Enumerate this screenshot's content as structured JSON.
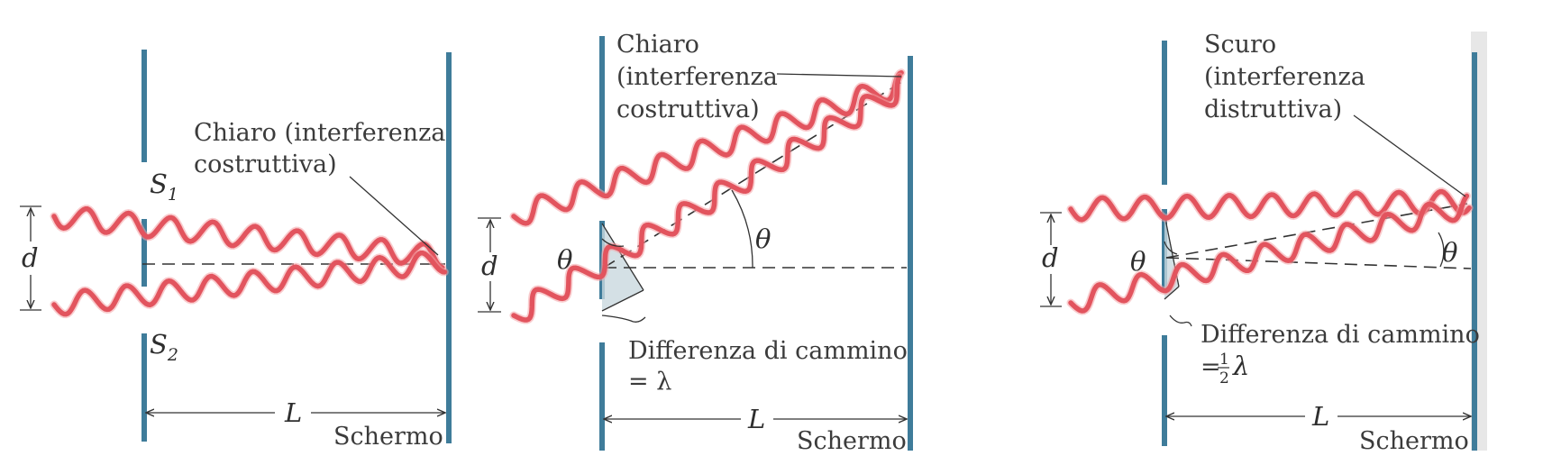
{
  "panel1": {
    "bright_label_line1": "Chiaro (interferenza",
    "bright_label_line2": "costruttiva)",
    "s1": "S",
    "s1_sub": "1",
    "s2": "S",
    "s2_sub": "2",
    "d": "d",
    "L": "L",
    "screen": "Schermo"
  },
  "panel2": {
    "bright_label_line1": "Chiaro",
    "bright_label_line2": "(interferenza",
    "bright_label_line3": "costruttiva)",
    "theta_left": "θ",
    "theta_right": "θ",
    "d": "d",
    "path_label": "Differenza di cammino",
    "path_value": "= λ",
    "L": "L",
    "screen": "Schermo"
  },
  "panel3": {
    "dark_label_line1": "Scuro",
    "dark_label_line2": "(interferenza",
    "dark_label_line3": "distruttiva)",
    "theta_left": "θ",
    "theta_right": "θ",
    "d": "d",
    "path_label": "Differenza di cammino",
    "path_eq": "=",
    "frac_num": "1",
    "frac_den": "2",
    "lambda": "λ",
    "L": "L",
    "screen": "Schermo"
  },
  "colors": {
    "wave": "#e2545e",
    "wall": "#3f7c9a"
  }
}
